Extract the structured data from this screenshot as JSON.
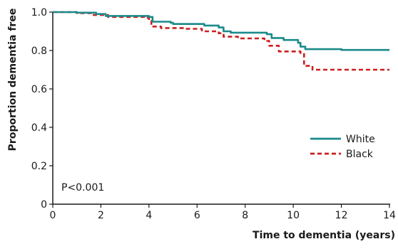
{
  "chart_data": {
    "type": "line",
    "step": true,
    "xlabel": "Time to dementia (years)",
    "ylabel": "Proportion dementia free",
    "xlim": [
      0,
      14
    ],
    "ylim": [
      0,
      1.0
    ],
    "xticks": [
      "0",
      "2",
      "4",
      "6",
      "8",
      "10",
      "12",
      "14"
    ],
    "yticks": [
      "0",
      "0.2",
      "0.4",
      "0.6",
      "0.8",
      "1.0"
    ],
    "grid": false,
    "legend_position": "right",
    "annotation": "P<0.001",
    "series": [
      {
        "name": "White",
        "color": "#1b8a8a",
        "style": "solid",
        "points": [
          [
            0,
            1.0
          ],
          [
            1.0,
            0.997
          ],
          [
            1.8,
            0.99
          ],
          [
            2.2,
            0.98
          ],
          [
            4.0,
            0.975
          ],
          [
            4.15,
            0.95
          ],
          [
            4.9,
            0.945
          ],
          [
            5.0,
            0.938
          ],
          [
            6.3,
            0.93
          ],
          [
            6.9,
            0.92
          ],
          [
            7.1,
            0.9
          ],
          [
            7.4,
            0.893
          ],
          [
            8.9,
            0.885
          ],
          [
            9.1,
            0.865
          ],
          [
            9.6,
            0.855
          ],
          [
            10.2,
            0.84
          ],
          [
            10.3,
            0.82
          ],
          [
            10.5,
            0.807
          ],
          [
            12.0,
            0.803
          ],
          [
            14.0,
            0.803
          ]
        ]
      },
      {
        "name": "Black",
        "color": "#cc1f1f",
        "style": "dashed",
        "points": [
          [
            0,
            1.0
          ],
          [
            1.0,
            0.995
          ],
          [
            1.7,
            0.985
          ],
          [
            2.3,
            0.975
          ],
          [
            3.8,
            0.97
          ],
          [
            4.0,
            0.955
          ],
          [
            4.1,
            0.925
          ],
          [
            4.5,
            0.917
          ],
          [
            5.5,
            0.913
          ],
          [
            6.2,
            0.9
          ],
          [
            6.9,
            0.89
          ],
          [
            7.1,
            0.872
          ],
          [
            7.7,
            0.863
          ],
          [
            8.8,
            0.85
          ],
          [
            9.0,
            0.825
          ],
          [
            9.4,
            0.795
          ],
          [
            10.3,
            0.787
          ],
          [
            10.45,
            0.72
          ],
          [
            10.8,
            0.7
          ],
          [
            12.0,
            0.7
          ],
          [
            14.0,
            0.7
          ]
        ]
      }
    ]
  }
}
